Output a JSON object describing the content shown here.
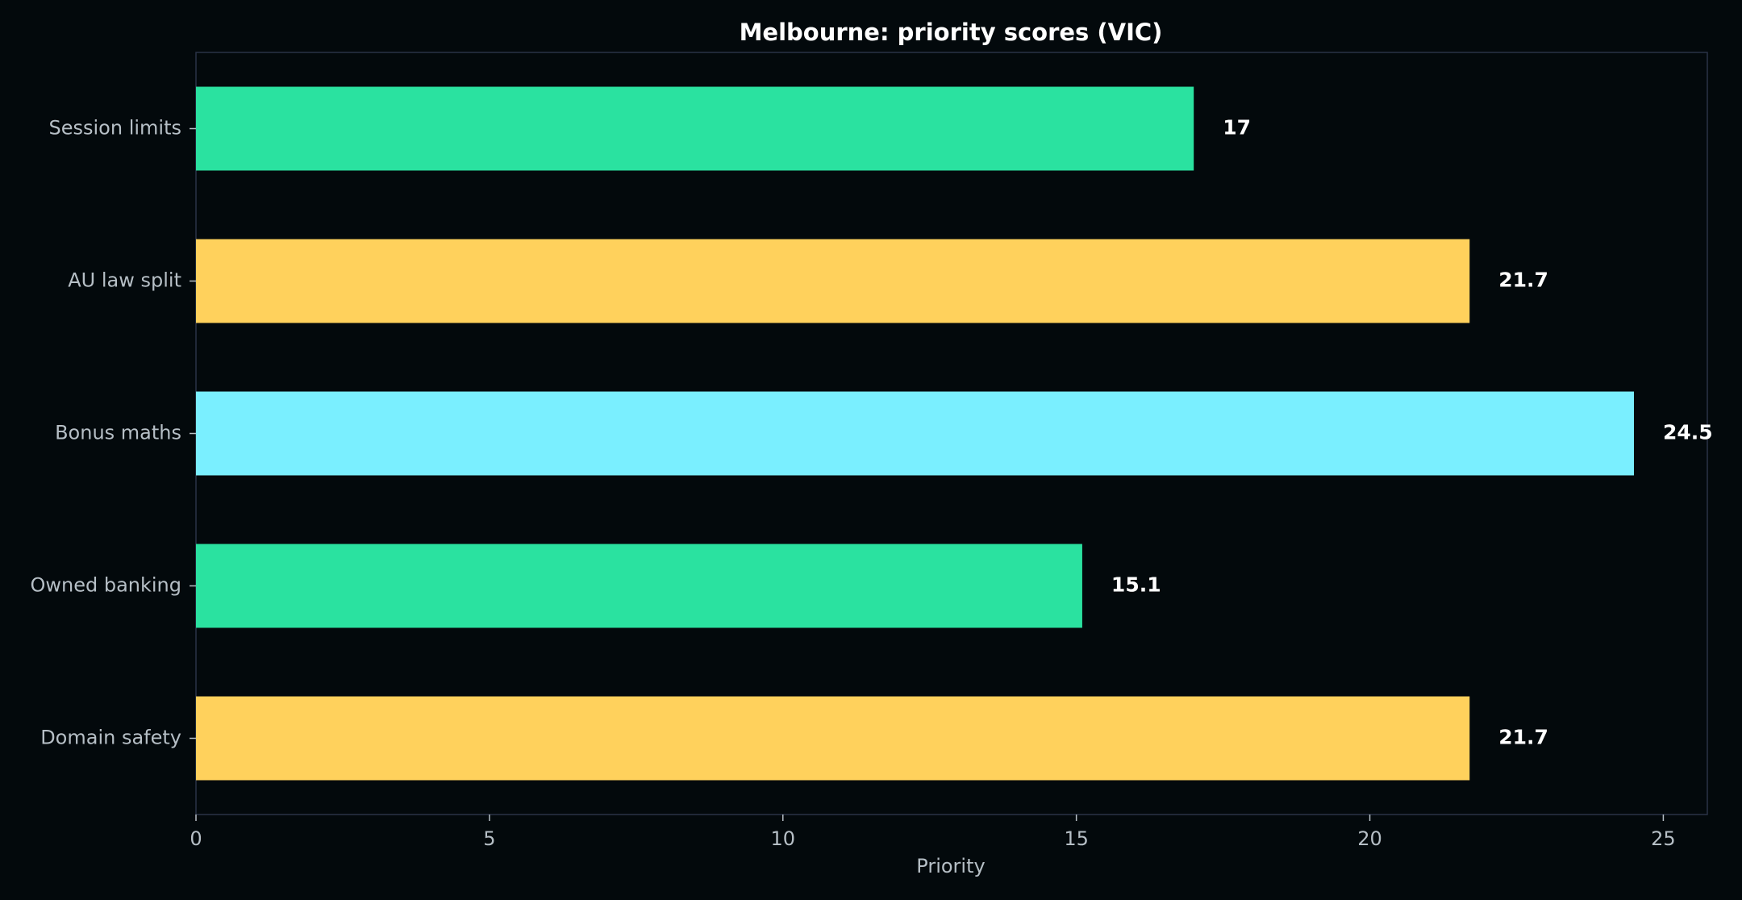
{
  "chart_data": {
    "type": "bar",
    "orientation": "horizontal",
    "title": "Melbourne: priority scores (VIC)",
    "xlabel": "Priority",
    "ylabel": "",
    "categories": [
      "Session limits",
      "AU law split",
      "Bonus maths",
      "Owned banking",
      "Domain safety"
    ],
    "values": [
      17,
      21.7,
      24.5,
      15.1,
      21.7
    ],
    "value_labels": [
      "17",
      "21.7",
      "24.5",
      "15.1",
      "21.7"
    ],
    "colors": [
      "#2ae2a0",
      "#ffd15c",
      "#7aefff",
      "#2ae2a0",
      "#ffd15c"
    ],
    "xlim": [
      0,
      25.75
    ],
    "xticks": [
      0,
      5,
      10,
      15,
      20,
      25
    ],
    "grid": false,
    "legend": "none",
    "background": "#03090c",
    "frame_color": "#2a3346"
  }
}
